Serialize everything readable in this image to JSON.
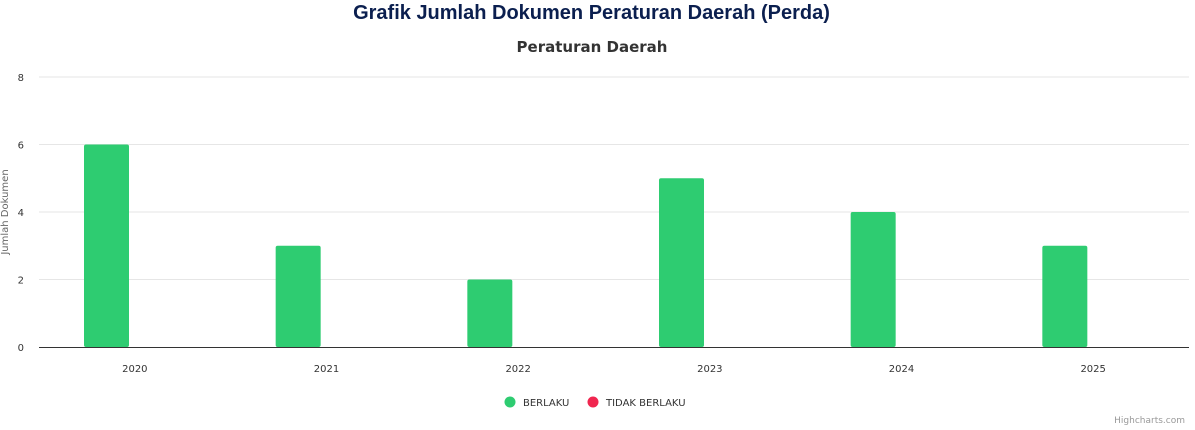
{
  "page": {
    "heading": "Grafik Jumlah Dokumen Peraturan Daerah (Perda)",
    "credits": "Highcharts.com"
  },
  "colors": {
    "berlaku": "#2ecc71",
    "tidak_berlaku": "#f0264f",
    "grid": "#e6e6e6",
    "axis_line": "#333333",
    "heading": "#0b1f4f"
  },
  "chart_data": {
    "type": "bar",
    "title": "Peraturan Daerah",
    "xlabel": "",
    "ylabel": "Jumlah Dokumen",
    "categories": [
      "2020",
      "2021",
      "2022",
      "2023",
      "2024",
      "2025"
    ],
    "series": [
      {
        "name": "BERLAKU",
        "values": [
          6,
          3,
          2,
          5,
          4,
          3
        ]
      },
      {
        "name": "TIDAK BERLAKU",
        "values": [
          0,
          0,
          0,
          0,
          0,
          0
        ]
      }
    ],
    "ylim": [
      0,
      8
    ],
    "yticks": [
      0,
      2,
      4,
      6,
      8
    ],
    "grid": true,
    "legend_position": "bottom-center"
  }
}
